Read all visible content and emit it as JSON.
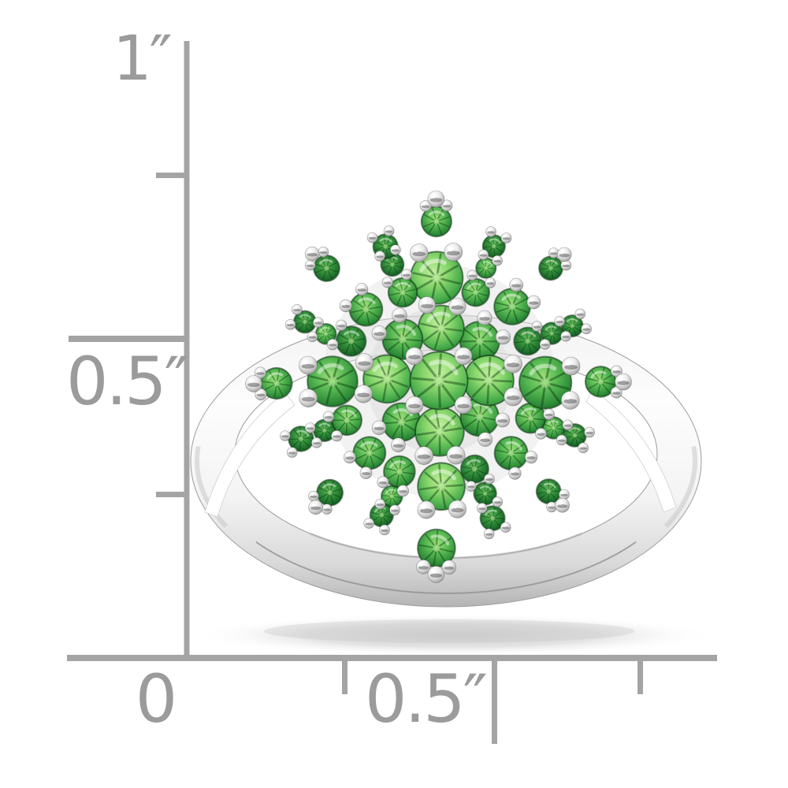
{
  "meta": {
    "type": "product-photo",
    "subject": "Sterling silver rhodium-plated ring with starburst cluster of round green tsavorite gemstones, shown against an inch measurement scale",
    "background_color": "#ffffff"
  },
  "ruler": {
    "unit": "inches",
    "line_color": "#a4a4a4",
    "label_color": "#9b9b9b",
    "vertical": {
      "top_label": "1″",
      "mid_label": "0.5″"
    },
    "horizontal": {
      "zero_label": "0",
      "mid_label": "0.5″"
    }
  },
  "ring": {
    "stone_gradients": {
      "light": [
        "#c2ef9f",
        "#8cd96e",
        "#46ab4a",
        "#1e6f27"
      ],
      "mid": [
        "#9ade79",
        "#5cbd55",
        "#2e8c38",
        "#145422"
      ],
      "dark": [
        "#66bb5c",
        "#37953d",
        "#1c6b2b",
        "#0c4517"
      ]
    },
    "stone_rim_color": "rgba(12,62,18,0.55)",
    "facet_color": "rgba(6,50,12,0.42)",
    "bead_gradient": [
      "#ffffff",
      "#ececec",
      "#c2c2c2",
      "#989898",
      "#838383"
    ],
    "bead_stripe_color": "rgba(60,60,60,0.45)",
    "band_gradient": [
      "#f2f2f2",
      "#fdfdfd",
      "#f4f4f4",
      "#d9d9d9",
      "#b3b3b3"
    ],
    "band_edge_color": "#9c9c9c",
    "band_reflection_color": "#8d8d8d",
    "shadow_color": "#c6c6c6"
  }
}
